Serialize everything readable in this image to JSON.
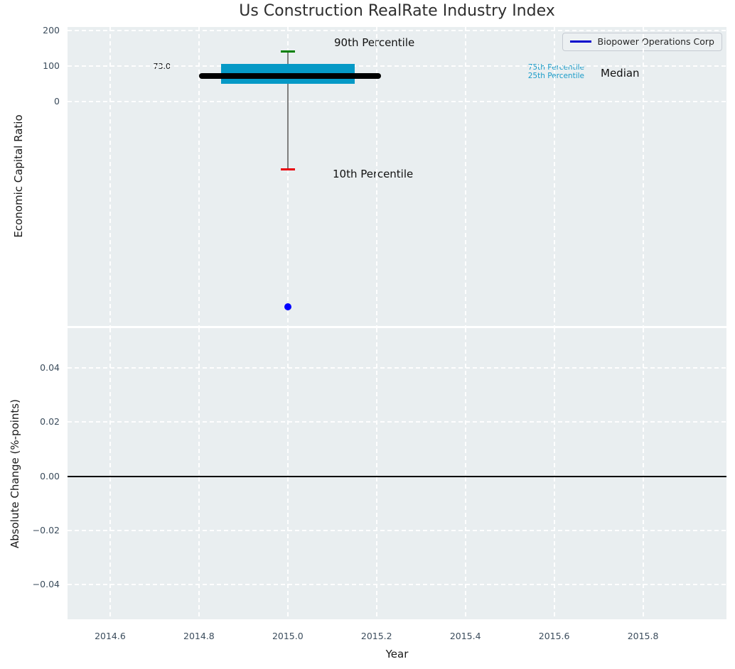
{
  "figure": {
    "title": "Us Construction RealRate Industry Index",
    "background": "#ffffff",
    "axes_background": "#e9eef0",
    "grid_color": "#ffffff",
    "tick_color": "#3b4c5c"
  },
  "legend": {
    "label": "Biopower Operations Corp",
    "line_color": "#0000cc"
  },
  "annotations": {
    "p90_label": "90th Percentile",
    "p10_label": "10th Percentile",
    "median_label": "Median",
    "p75_label": "75th Percentile",
    "p25_label": "25th Percentile",
    "median_value_label": "73.0"
  },
  "chart_data": [
    {
      "type": "boxplot",
      "panel": "top",
      "ylabel": "Economic Capital Ratio",
      "xlim": [
        2014.504,
        2015.988
      ],
      "ylim": [
        -628,
        209.3
      ],
      "xticks": [
        2014.6,
        2014.8,
        2015.0,
        2015.2,
        2015.4,
        2015.6,
        2015.8
      ],
      "xtick_labels": [
        "2014.6",
        "2014.8",
        "2015.0",
        "2015.2",
        "2015.4",
        "2015.6",
        "2015.8"
      ],
      "show_xtick_labels": false,
      "yticks": [
        200,
        100,
        0
      ],
      "ytick_labels": [
        "200",
        "100",
        "0"
      ],
      "grid": true,
      "industry_box": {
        "x": 2015.0,
        "p90": 140,
        "p75": 105,
        "median": 73.0,
        "p25": 50,
        "p10": -190,
        "box_x_range": [
          2014.85,
          2015.15
        ],
        "median_line_x_range": [
          2014.8,
          2015.21
        ],
        "colors": {
          "box": "#0599c6",
          "median_line": "#000000",
          "p90_cap": "#008000",
          "p10_cap": "#e8000b",
          "whisker": "#7f7f7f"
        }
      },
      "series": [
        {
          "name": "Biopower Operations Corp",
          "color": "#0000ff",
          "marker": "circle",
          "points": [
            [
              2015.0,
              -575
            ]
          ]
        }
      ]
    },
    {
      "type": "line",
      "panel": "bottom",
      "ylabel": "Absolute Change (%-points)",
      "xlabel": "Year",
      "xlim": [
        2014.504,
        2015.988
      ],
      "ylim": [
        -0.0528,
        0.0547
      ],
      "xticks": [
        2014.6,
        2014.8,
        2015.0,
        2015.2,
        2015.4,
        2015.6,
        2015.8
      ],
      "xtick_labels": [
        "2014.6",
        "2014.8",
        "2015.0",
        "2015.2",
        "2015.4",
        "2015.6",
        "2015.8"
      ],
      "show_xtick_labels": true,
      "yticks": [
        0.04,
        0.02,
        0,
        -0.02,
        -0.04
      ],
      "ytick_labels": [
        "0.04",
        "0.02",
        "0.00",
        "−0.02",
        "−0.04"
      ],
      "grid": true,
      "zero_line": {
        "y": 0,
        "color": "#000000",
        "width": 2
      },
      "series": []
    }
  ]
}
